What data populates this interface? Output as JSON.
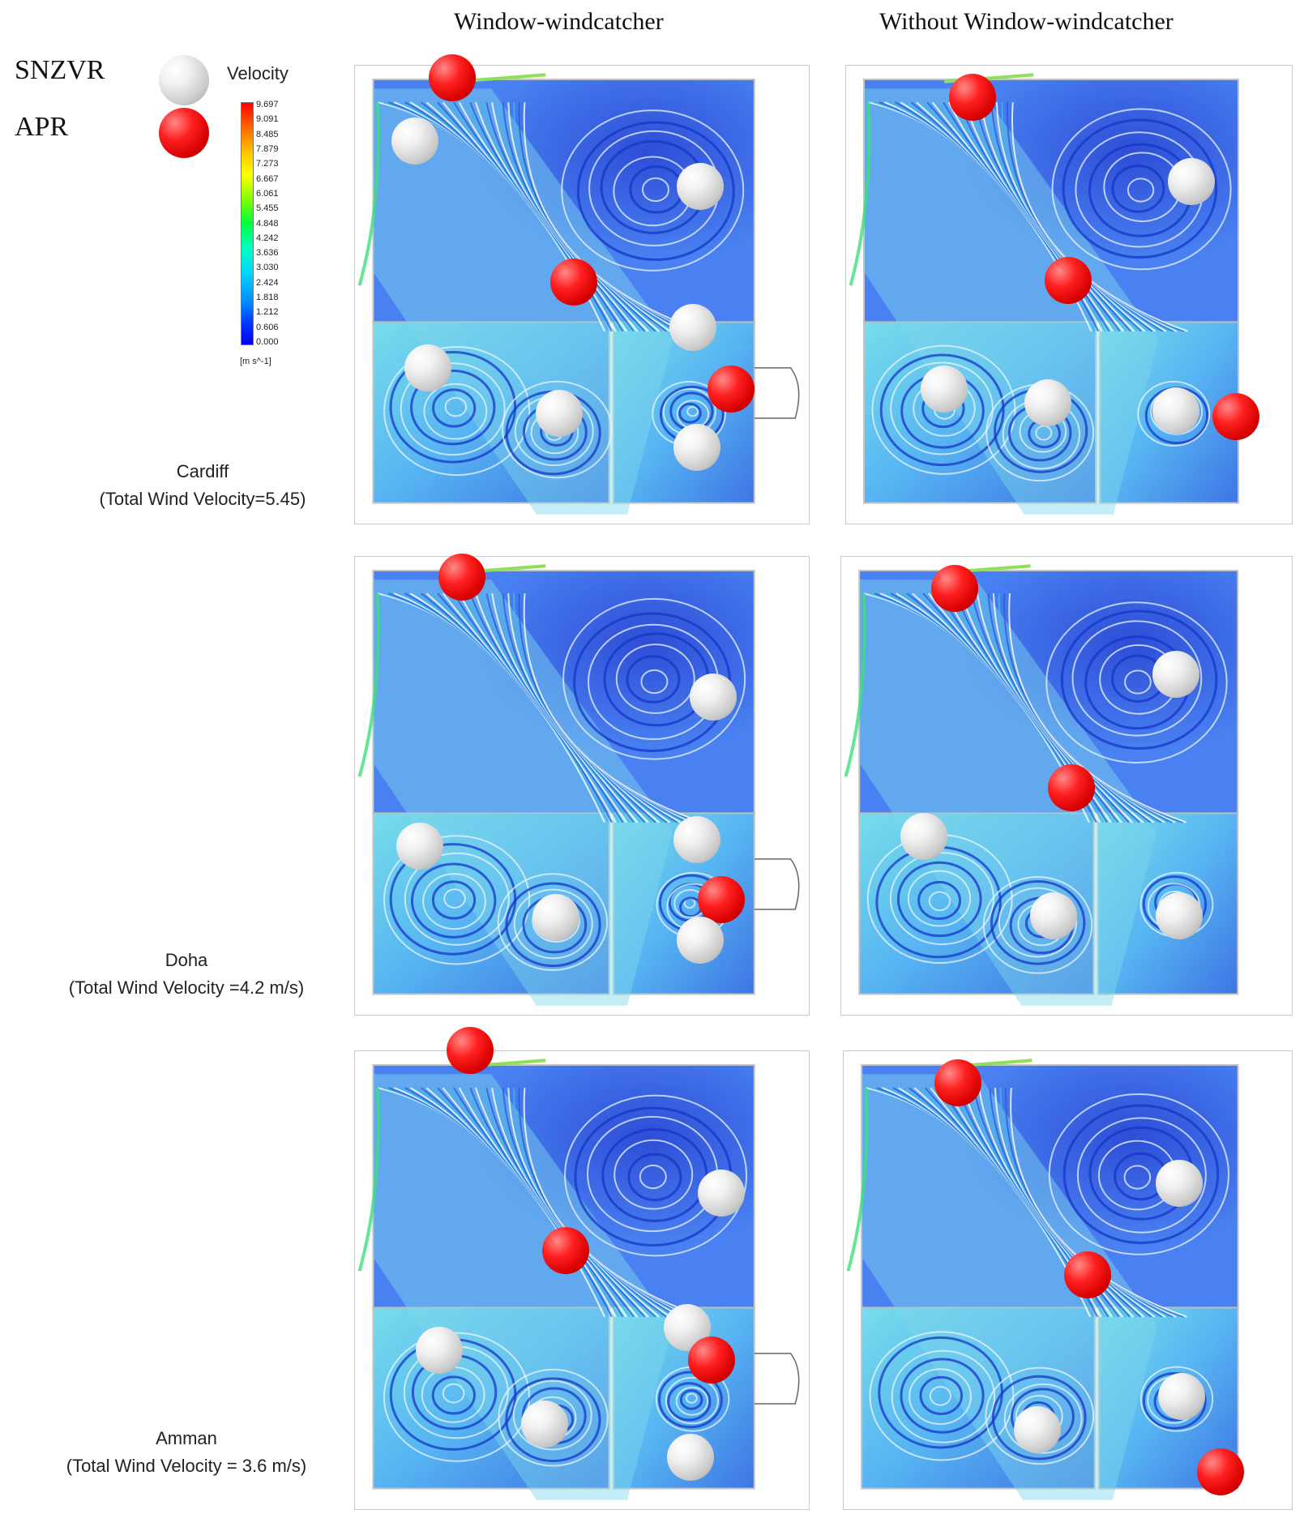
{
  "columns": {
    "left": "Window-windcatcher",
    "right": "Without Window-windcatcher"
  },
  "legend": {
    "snzvr": "SNZVR",
    "apr": "APR",
    "snzvr_color": "#d9d9d9",
    "apr_color": "#ff1a1a",
    "velocity_title": "Velocity",
    "ticks": [
      "9.697",
      "9.091",
      "8.485",
      "7.879",
      "7.273",
      "6.667",
      "6.061",
      "5.455",
      "4.848",
      "4.242",
      "3.636",
      "3.030",
      "2.424",
      "1.818",
      "1.212",
      "0.606",
      "0.000"
    ],
    "unit": "[m s^-1]"
  },
  "rows": [
    {
      "city": "Cardiff",
      "detail": "(Total Wind Velocity=5.45)"
    },
    {
      "city": "Doha",
      "detail": "(Total Wind Velocity =4.2 m/s)"
    },
    {
      "city": "Amman",
      "detail": "(Total Wind Velocity = 3.6 m/s)"
    }
  ]
}
